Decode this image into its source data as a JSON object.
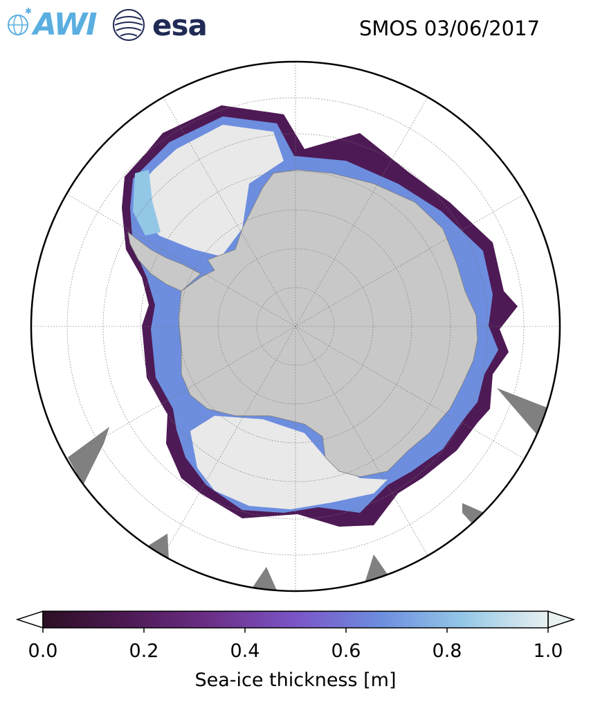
{
  "header": {
    "awi_logo_text": "AWI",
    "esa_logo_text": "esa",
    "title": "SMOS 03/06/2017"
  },
  "map": {
    "projection": "south-polar-stereographic",
    "variable": "sea-ice thickness",
    "colors": {
      "land": "#c8c8c8",
      "no_data": "#808080",
      "ocean": "#ffffff",
      "thick_ice": "#e9e9e9"
    }
  },
  "colorbar": {
    "label": "Sea-ice thickness [m]",
    "ticks": [
      "0.0",
      "0.2",
      "0.4",
      "0.6",
      "0.8",
      "1.0"
    ],
    "range": [
      0.0,
      1.0
    ],
    "extend": "both",
    "colormap": [
      "#2c0f24",
      "#4e1a55",
      "#6b2f88",
      "#7b55c6",
      "#6d8edf",
      "#93c7e6",
      "#e8f0f0"
    ]
  }
}
